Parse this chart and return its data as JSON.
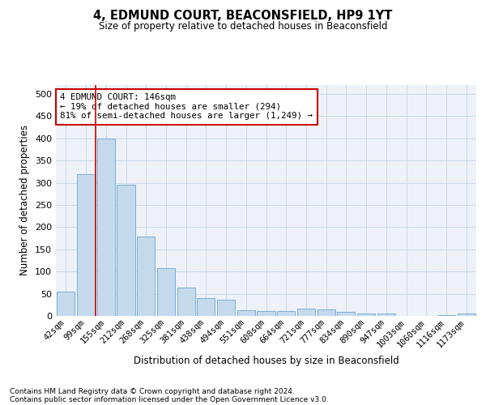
{
  "title1": "4, EDMUND COURT, BEACONSFIELD, HP9 1YT",
  "title2": "Size of property relative to detached houses in Beaconsfield",
  "xlabel": "Distribution of detached houses by size in Beaconsfield",
  "ylabel": "Number of detached properties",
  "footnote1": "Contains HM Land Registry data © Crown copyright and database right 2024.",
  "footnote2": "Contains public sector information licensed under the Open Government Licence v3.0.",
  "bar_color": "#c5d9ed",
  "bar_edge_color": "#7aafd4",
  "grid_color": "#c8d8e8",
  "vline_color": "#cc0000",
  "annotation_line1": "4 EDMUND COURT: 146sqm",
  "annotation_line2": "← 19% of detached houses are smaller (294)",
  "annotation_line3": "81% of semi-detached houses are larger (1,249) →",
  "annotation_box_color": "#ffffff",
  "annotation_box_edge": "#cc0000",
  "categories": [
    "42sqm",
    "99sqm",
    "155sqm",
    "212sqm",
    "268sqm",
    "325sqm",
    "381sqm",
    "438sqm",
    "494sqm",
    "551sqm",
    "608sqm",
    "664sqm",
    "721sqm",
    "777sqm",
    "834sqm",
    "890sqm",
    "947sqm",
    "1003sqm",
    "1060sqm",
    "1116sqm",
    "1173sqm"
  ],
  "values": [
    55,
    320,
    400,
    295,
    178,
    107,
    63,
    40,
    37,
    12,
    11,
    11,
    16,
    15,
    9,
    5,
    5,
    0,
    0,
    2,
    6
  ],
  "vline_x": 1.5,
  "ylim": [
    0,
    520
  ],
  "yticks": [
    0,
    50,
    100,
    150,
    200,
    250,
    300,
    350,
    400,
    450,
    500
  ],
  "background_color": "#eef2f8",
  "fig_background": "#ffffff",
  "title1_fontsize": 10.5,
  "title2_fontsize": 8.5,
  "ylabel_fontsize": 8.5,
  "xlabel_fontsize": 8.5,
  "tick_fontsize": 7.5,
  "footnote_fontsize": 6.5
}
